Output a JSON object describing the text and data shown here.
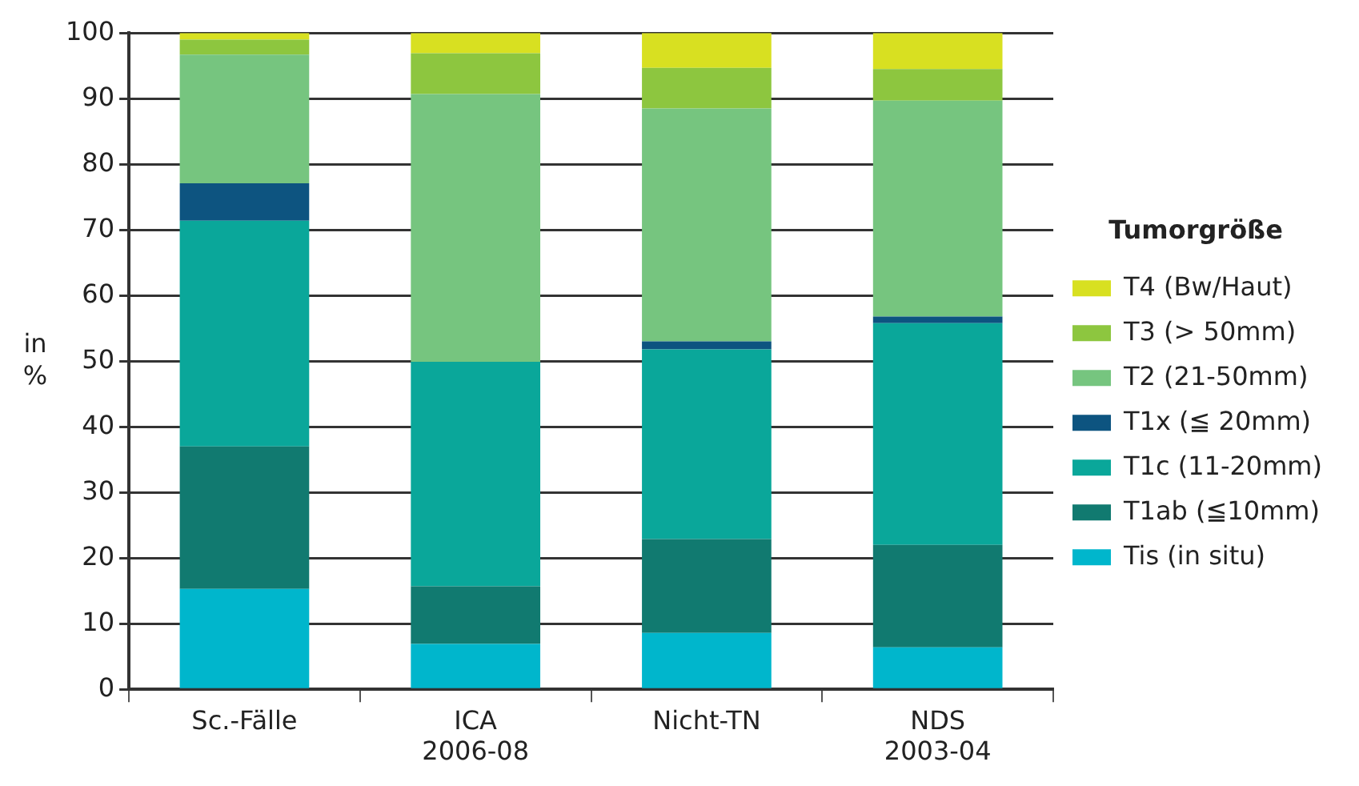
{
  "chart_data": {
    "type": "bar",
    "stacked": true,
    "ylabel": "in\n%",
    "legend_title": "Tumorgröße",
    "legend": "right",
    "categories": [
      "Sc.-Fälle",
      "ICA\n2006-08",
      "Nicht-TN",
      "NDS\n2003-04"
    ],
    "series": [
      {
        "name": "Tis (in situ)",
        "color": "#00b6cc",
        "values": [
          15.3,
          6.9,
          8.6,
          6.4
        ]
      },
      {
        "name": "T1ab (≦10mm)",
        "color": "#117a70",
        "values": [
          21.7,
          8.8,
          14.3,
          15.6
        ]
      },
      {
        "name": "T1c (11-20mm)",
        "color": "#0aa79a",
        "values": [
          34.4,
          34.2,
          28.9,
          33.8
        ]
      },
      {
        "name": "T1x (≦ 20mm)",
        "color": "#0d5480",
        "values": [
          5.7,
          0,
          1.2,
          1.0
        ]
      },
      {
        "name": "T2 (21-50mm)",
        "color": "#76c57f",
        "values": [
          19.6,
          40.8,
          35.5,
          32.9
        ]
      },
      {
        "name": "T3 (> 50mm)",
        "color": "#8dc63f",
        "values": [
          2.3,
          6.2,
          6.2,
          4.8
        ]
      },
      {
        "name": "T4 (Bw/Haut)",
        "color": "#d8e021",
        "values": [
          1.0,
          3.1,
          5.3,
          5.5
        ]
      }
    ],
    "ylim": [
      0,
      100
    ],
    "yticks": [
      0,
      10,
      20,
      30,
      40,
      50,
      60,
      70,
      80,
      90,
      100
    ],
    "grid": "y"
  }
}
